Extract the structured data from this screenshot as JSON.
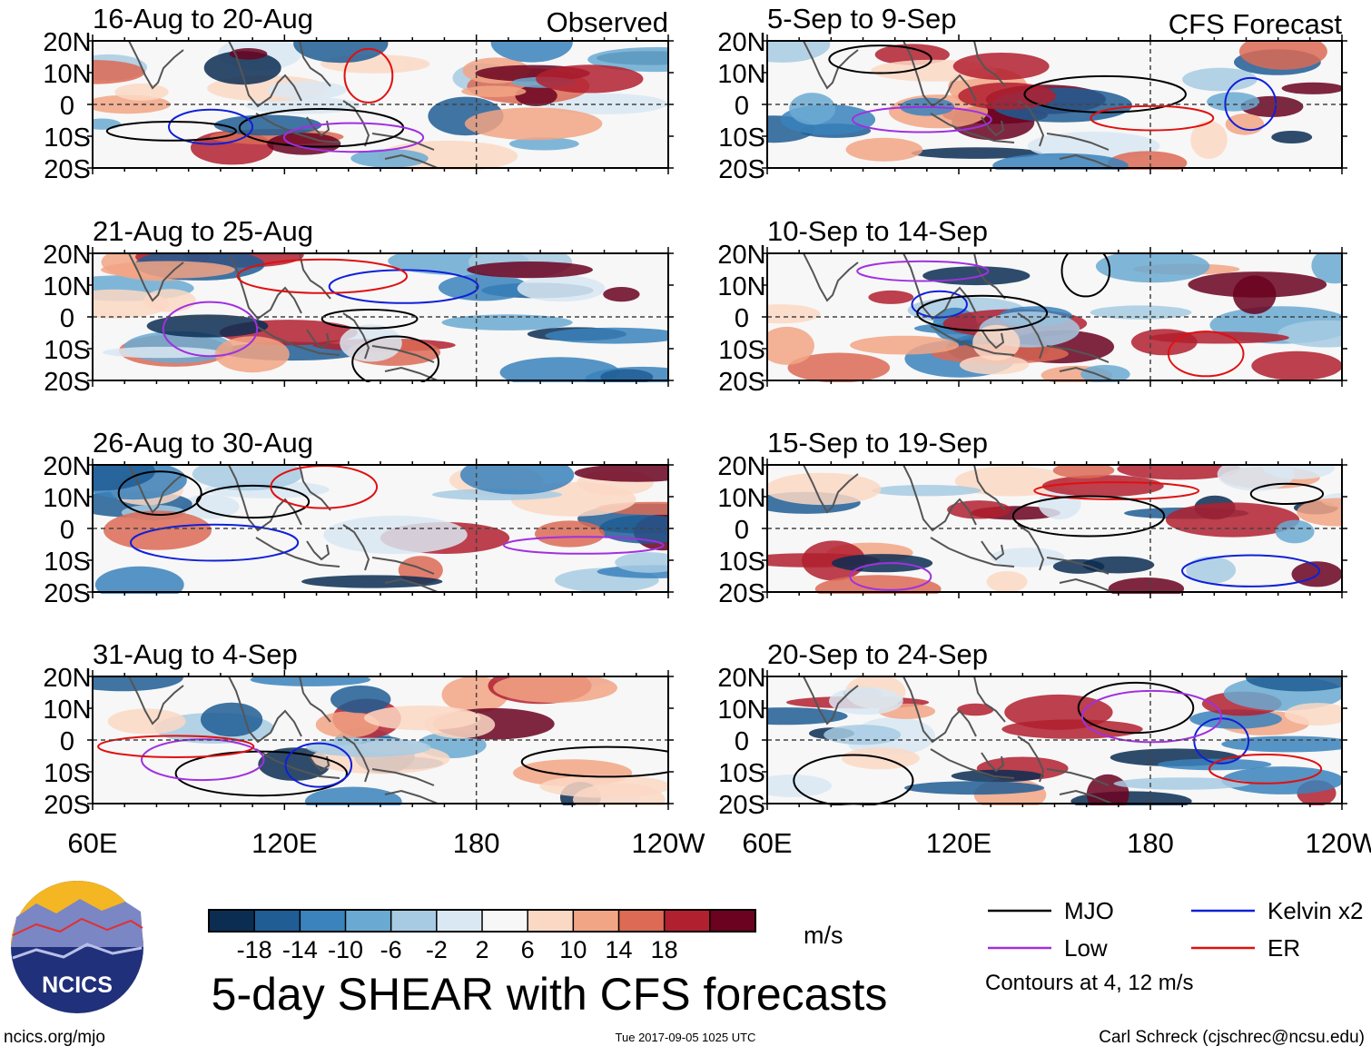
{
  "chart_data": {
    "type": "heatmap",
    "title": "5-day SHEAR with CFS forecasts",
    "column_labels": {
      "left": "Observed",
      "right": "CFS Forecast"
    },
    "x_ticks": [
      "60E",
      "120E",
      "180",
      "120W"
    ],
    "y_ticks": [
      "20N",
      "10N",
      "0",
      "10S",
      "20S"
    ],
    "lon_range": [
      60,
      240
    ],
    "lat_range": [
      -20,
      20
    ],
    "panels": [
      {
        "period": "16-Aug to 20-Aug",
        "source": "Observed"
      },
      {
        "period": "21-Aug to 25-Aug",
        "source": "Observed"
      },
      {
        "period": "26-Aug to 30-Aug",
        "source": "Observed"
      },
      {
        "period": "31-Aug to 4-Sep",
        "source": "Observed"
      },
      {
        "period": "5-Sep to 9-Sep",
        "source": "CFS Forecast"
      },
      {
        "period": "10-Sep to 14-Sep",
        "source": "CFS Forecast"
      },
      {
        "period": "15-Sep to 19-Sep",
        "source": "CFS Forecast"
      },
      {
        "period": "20-Sep to 24-Sep",
        "source": "CFS Forecast"
      }
    ],
    "colorbar": {
      "unit": "m/s",
      "tick_labels": [
        "-18",
        "-14",
        "-10",
        "-6",
        "-2",
        "2",
        "6",
        "10",
        "14",
        "18"
      ],
      "colors": [
        "#0b2d52",
        "#1f5d94",
        "#3a83bc",
        "#6aaad2",
        "#a7cbe3",
        "#d9e8f2",
        "#f7f7f7",
        "#fbd8c4",
        "#f2a585",
        "#dc6a55",
        "#b1202f",
        "#6a0220"
      ]
    },
    "legend": [
      {
        "label": "MJO",
        "color": "#000000"
      },
      {
        "label": "Kelvin x2",
        "color": "#1020d8"
      },
      {
        "label": "Low",
        "color": "#a030e0"
      },
      {
        "label": "ER",
        "color": "#e01010"
      }
    ],
    "contour_note": "Contours at 4, 12 m/s"
  },
  "footer": {
    "logo_text": "NCICS",
    "website": "ncics.org/mjo",
    "timestamp": "Tue 2017-09-05 1025 UTC",
    "credit": "Carl Schreck (cjschrec@ncsu.edu)"
  }
}
